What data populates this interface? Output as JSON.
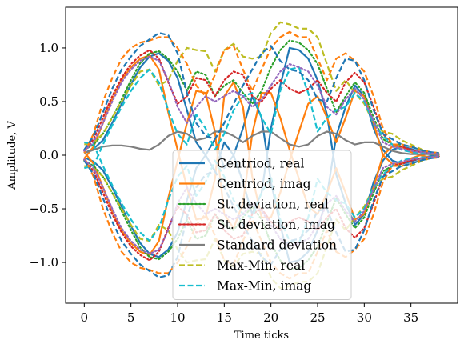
{
  "chart_data": {
    "type": "line",
    "xlabel": "Time ticks",
    "ylabel": "Amplitude, V",
    "xlim": [
      -2,
      40
    ],
    "ylim": [
      -1.38,
      1.38
    ],
    "xticks": [
      0,
      5,
      10,
      15,
      20,
      25,
      30,
      35
    ],
    "yticks": [
      -1.0,
      -0.5,
      0.0,
      0.5,
      1.0
    ],
    "ytick_labels": [
      "−1.0",
      "−0.5",
      "0.0",
      "0.5",
      "1.0"
    ],
    "grid": false,
    "legend_position": "lower-center",
    "x": [
      0,
      1,
      2,
      3,
      4,
      5,
      6,
      7,
      8,
      9,
      10,
      11,
      12,
      13,
      14,
      15,
      16,
      17,
      18,
      19,
      20,
      21,
      22,
      23,
      24,
      25,
      26,
      27,
      28,
      29,
      30,
      31,
      32,
      33,
      34,
      35,
      36,
      37,
      38
    ],
    "series": [
      {
        "name": "Centriod, real",
        "color": "#1f77b4",
        "style": "solid",
        "mirror": true,
        "values": [
          0.02,
          0.06,
          0.14,
          0.3,
          0.48,
          0.66,
          0.82,
          0.92,
          0.95,
          0.88,
          0.72,
          0.42,
          0.12,
          0.0,
          -0.15,
          0.12,
          0.0,
          -0.25,
          -0.55,
          -0.35,
          0.25,
          0.65,
          1.0,
          0.98,
          0.9,
          0.7,
          0.38,
          -0.18,
          -0.45,
          -0.65,
          -0.55,
          -0.25,
          -0.05,
          0.05,
          0.08,
          0.06,
          0.03,
          0.01,
          0.0
        ]
      },
      {
        "name": "Centriod, imag",
        "color": "#ff7f0e",
        "style": "solid",
        "mirror": true,
        "values": [
          -0.03,
          0.08,
          0.3,
          0.52,
          0.7,
          0.82,
          0.9,
          0.93,
          0.8,
          0.4,
          0.05,
          -0.3,
          -0.6,
          -0.58,
          -0.22,
          0.55,
          0.68,
          0.45,
          -0.2,
          -0.58,
          -0.58,
          -0.35,
          -0.05,
          0.22,
          0.48,
          0.55,
          0.35,
          0.12,
          0.35,
          0.6,
          0.55,
          0.3,
          0.0,
          -0.08,
          -0.08,
          -0.03,
          0.0,
          0.02,
          0.01
        ]
      },
      {
        "name": "St. deviation, real",
        "color": "#2ca02c",
        "style": "dotted",
        "mirror": true,
        "values": [
          0.05,
          0.1,
          0.2,
          0.35,
          0.52,
          0.7,
          0.86,
          0.95,
          0.97,
          0.9,
          0.78,
          0.6,
          0.78,
          0.75,
          0.55,
          0.65,
          0.7,
          0.58,
          0.48,
          0.6,
          0.82,
          0.98,
          1.07,
          1.05,
          0.98,
          0.85,
          0.62,
          0.4,
          0.55,
          0.68,
          0.58,
          0.35,
          0.15,
          0.1,
          0.1,
          0.08,
          0.05,
          0.03,
          0.01
        ]
      },
      {
        "name": "St. deviation, imag",
        "color": "#d62728",
        "style": "dotted",
        "mirror": true,
        "values": [
          0.04,
          0.15,
          0.35,
          0.55,
          0.72,
          0.85,
          0.93,
          0.98,
          0.9,
          0.68,
          0.48,
          0.55,
          0.72,
          0.7,
          0.55,
          0.7,
          0.78,
          0.75,
          0.55,
          0.5,
          0.62,
          0.7,
          0.62,
          0.58,
          0.62,
          0.7,
          0.58,
          0.5,
          0.68,
          0.77,
          0.68,
          0.45,
          0.2,
          0.1,
          0.08,
          0.05,
          0.03,
          0.02,
          0.01
        ]
      },
      {
        "name": "Standard deviation",
        "color": "#7f7f7f",
        "style": "solid",
        "mirror": false,
        "values": [
          0.02,
          0.05,
          0.08,
          0.09,
          0.09,
          0.08,
          0.06,
          0.05,
          0.1,
          0.18,
          0.22,
          0.2,
          0.14,
          0.16,
          0.22,
          0.22,
          0.18,
          0.12,
          0.18,
          0.22,
          0.22,
          0.16,
          0.1,
          0.08,
          0.1,
          0.18,
          0.22,
          0.2,
          0.14,
          0.1,
          0.12,
          0.12,
          0.08,
          0.04,
          0.02,
          0.01,
          0.01,
          0.01,
          0.0
        ]
      },
      {
        "name": "Max-Min, real",
        "color": "#bcbd22",
        "style": "dashed",
        "mirror": true,
        "values": [
          0.1,
          0.12,
          0.2,
          0.35,
          0.5,
          0.65,
          0.78,
          0.8,
          0.65,
          0.7,
          0.88,
          1.0,
          0.98,
          0.97,
          0.78,
          0.98,
          1.04,
          0.92,
          0.9,
          0.92,
          1.14,
          1.24,
          1.22,
          1.18,
          1.18,
          1.1,
          0.85,
          0.6,
          0.7,
          0.58,
          0.48,
          0.3,
          0.22,
          0.2,
          0.14,
          0.1,
          0.06,
          0.03,
          0.02
        ]
      },
      {
        "name": "Max-Min, imag",
        "color": "#17becf",
        "style": "dashed",
        "mirror": true,
        "values": [
          -0.12,
          -0.1,
          0.1,
          0.28,
          0.45,
          0.6,
          0.72,
          0.8,
          0.68,
          0.42,
          0.2,
          0.1,
          0.38,
          0.25,
          0.05,
          0.2,
          0.42,
          0.55,
          0.58,
          0.35,
          0.2,
          0.6,
          0.8,
          0.82,
          0.58,
          0.22,
          0.35,
          0.42,
          0.45,
          0.58,
          0.5,
          0.3,
          0.18,
          0.1,
          0.05,
          0.03,
          0.02,
          0.02,
          0.01
        ]
      },
      {
        "name": "",
        "color": "#ff7f0e",
        "style": "dashed",
        "mirror": true,
        "values": [
          0.02,
          0.2,
          0.5,
          0.72,
          0.9,
          1.0,
          1.05,
          1.07,
          1.1,
          1.1,
          1.0,
          0.85,
          0.65,
          0.55,
          0.75,
          0.98,
          1.02,
          0.8,
          0.6,
          0.8,
          1.0,
          1.1,
          1.15,
          1.1,
          1.1,
          0.9,
          0.7,
          0.9,
          0.95,
          0.88,
          0.78,
          0.55,
          0.25,
          0.1,
          0.1,
          0.08,
          0.05,
          0.03,
          0.02
        ]
      },
      {
        "name": "",
        "color": "#1f77b4",
        "style": "dashed",
        "mirror": true,
        "values": [
          0.05,
          0.18,
          0.4,
          0.62,
          0.8,
          0.92,
          1.02,
          1.08,
          1.14,
          1.12,
          0.95,
          0.58,
          0.3,
          0.18,
          0.15,
          0.3,
          0.48,
          0.65,
          0.8,
          0.95,
          1.02,
          0.88,
          0.8,
          0.78,
          0.7,
          0.52,
          0.5,
          0.72,
          0.9,
          0.88,
          0.7,
          0.42,
          0.2,
          0.15,
          0.1,
          0.08,
          0.05,
          0.03,
          0.02
        ]
      },
      {
        "name": "",
        "color": "#9467bd",
        "style": "dotted",
        "mirror": true,
        "values": [
          0.04,
          0.12,
          0.3,
          0.5,
          0.68,
          0.8,
          0.88,
          0.92,
          0.88,
          0.7,
          0.45,
          0.3,
          0.45,
          0.55,
          0.5,
          0.55,
          0.6,
          0.55,
          0.45,
          0.52,
          0.65,
          0.78,
          0.85,
          0.82,
          0.78,
          0.65,
          0.45,
          0.38,
          0.52,
          0.62,
          0.52,
          0.32,
          0.12,
          0.08,
          0.06,
          0.04,
          0.03,
          0.02,
          0.01
        ]
      }
    ]
  }
}
